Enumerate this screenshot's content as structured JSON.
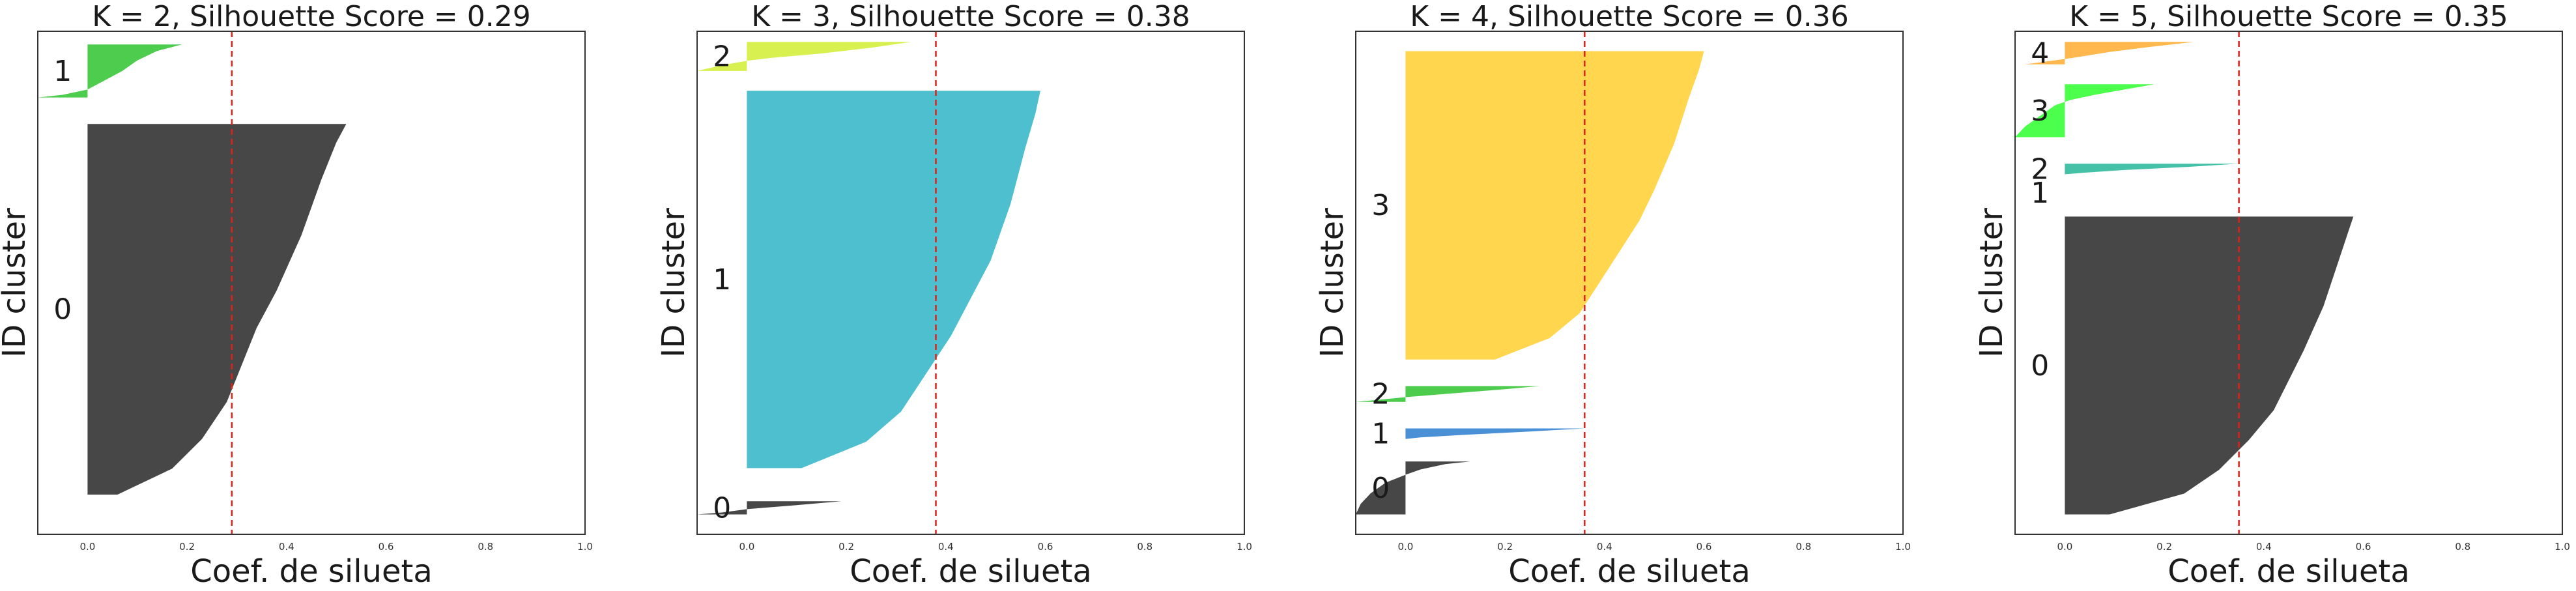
{
  "chart_data": [
    {
      "type": "silhouette",
      "title": "K = 2, Silhouette Score = 0.29",
      "xlabel": "Coef. de silueta",
      "ylabel": "ID cluster",
      "xlim": [
        -0.1,
        1.0
      ],
      "xticks": [
        "0.0",
        "0.2",
        "0.4",
        "0.6",
        "0.8",
        "1.0"
      ],
      "xtick_values": [
        0.0,
        0.2,
        0.4,
        0.6,
        0.8,
        1.0
      ],
      "avg_score": 0.29,
      "avg_line_color": "#e0201b",
      "y_total": 380,
      "clusters": [
        {
          "label": "0",
          "color": "#474747",
          "y0": 30,
          "y1": 310,
          "profile": [
            [
              0.0,
              0.52
            ],
            [
              0.05,
              0.5
            ],
            [
              0.15,
              0.47
            ],
            [
              0.3,
              0.43
            ],
            [
              0.45,
              0.38
            ],
            [
              0.55,
              0.34
            ],
            [
              0.65,
              0.31
            ],
            [
              0.75,
              0.28
            ],
            [
              0.85,
              0.23
            ],
            [
              0.93,
              0.17
            ],
            [
              1.0,
              0.06
            ]
          ]
        },
        {
          "label": "1",
          "color": "#4dcc4d",
          "y0": 330,
          "y1": 370,
          "profile": [
            [
              0.0,
              0.19
            ],
            [
              0.12,
              0.14
            ],
            [
              0.3,
              0.1
            ],
            [
              0.5,
              0.07
            ],
            [
              0.7,
              0.03
            ],
            [
              0.85,
              0.0
            ],
            [
              0.95,
              -0.05
            ],
            [
              1.0,
              -0.1
            ]
          ]
        }
      ]
    },
    {
      "type": "silhouette",
      "title": "K = 3, Silhouette Score = 0.38",
      "xlabel": "Coef. de silueta",
      "ylabel": "ID cluster",
      "xlim": [
        -0.1,
        1.0
      ],
      "xticks": [
        "0.0",
        "0.2",
        "0.4",
        "0.6",
        "0.8",
        "1.0"
      ],
      "xtick_values": [
        0.0,
        0.2,
        0.4,
        0.6,
        0.8,
        1.0
      ],
      "avg_score": 0.38,
      "avg_line_color": "#e0201b",
      "y_total": 380,
      "clusters": [
        {
          "label": "0",
          "color": "#474747",
          "y0": 15,
          "y1": 25,
          "profile": [
            [
              0.0,
              0.19
            ],
            [
              0.3,
              0.1
            ],
            [
              0.6,
              0.0
            ],
            [
              0.85,
              -0.05
            ],
            [
              1.0,
              -0.1
            ]
          ]
        },
        {
          "label": "1",
          "color": "#4ebfce",
          "y0": 50,
          "y1": 335,
          "profile": [
            [
              0.0,
              0.59
            ],
            [
              0.06,
              0.58
            ],
            [
              0.15,
              0.56
            ],
            [
              0.3,
              0.53
            ],
            [
              0.45,
              0.49
            ],
            [
              0.55,
              0.45
            ],
            [
              0.65,
              0.41
            ],
            [
              0.75,
              0.36
            ],
            [
              0.85,
              0.31
            ],
            [
              0.93,
              0.24
            ],
            [
              1.0,
              0.11
            ]
          ]
        },
        {
          "label": "2",
          "color": "#d8f050",
          "y0": 350,
          "y1": 372,
          "profile": [
            [
              0.0,
              0.33
            ],
            [
              0.2,
              0.25
            ],
            [
              0.4,
              0.15
            ],
            [
              0.55,
              0.05
            ],
            [
              0.65,
              0.0
            ],
            [
              0.8,
              -0.05
            ],
            [
              1.0,
              -0.1
            ]
          ]
        }
      ]
    },
    {
      "type": "silhouette",
      "title": "K = 4, Silhouette Score = 0.36",
      "xlabel": "Coef. de silueta",
      "ylabel": "ID cluster",
      "xlim": [
        -0.1,
        1.0
      ],
      "xticks": [
        "0.0",
        "0.2",
        "0.4",
        "0.6",
        "0.8",
        "1.0"
      ],
      "xtick_values": [
        0.0,
        0.2,
        0.4,
        0.6,
        0.8,
        1.0
      ],
      "avg_score": 0.36,
      "avg_line_color": "#e0201b",
      "y_total": 380,
      "clusters": [
        {
          "label": "0",
          "color": "#474747",
          "y0": 15,
          "y1": 55,
          "profile": [
            [
              0.0,
              0.13
            ],
            [
              0.05,
              0.08
            ],
            [
              0.15,
              0.03
            ],
            [
              0.25,
              0.0
            ],
            [
              0.4,
              -0.04
            ],
            [
              0.6,
              -0.07
            ],
            [
              0.8,
              -0.09
            ],
            [
              1.0,
              -0.1
            ]
          ]
        },
        {
          "label": "1",
          "color": "#4a90d6",
          "y0": 72,
          "y1": 80,
          "profile": [
            [
              0.0,
              0.36
            ],
            [
              0.3,
              0.25
            ],
            [
              0.6,
              0.12
            ],
            [
              0.85,
              0.03
            ],
            [
              1.0,
              0.0
            ]
          ]
        },
        {
          "label": "2",
          "color": "#4dcc4d",
          "y0": 100,
          "y1": 112,
          "profile": [
            [
              0.0,
              0.27
            ],
            [
              0.2,
              0.2
            ],
            [
              0.45,
              0.1
            ],
            [
              0.7,
              0.0
            ],
            [
              0.85,
              -0.05
            ],
            [
              1.0,
              -0.1
            ]
          ]
        },
        {
          "label": "3",
          "color": "#ffd64d",
          "y0": 132,
          "y1": 365,
          "profile": [
            [
              0.0,
              0.6
            ],
            [
              0.06,
              0.59
            ],
            [
              0.15,
              0.57
            ],
            [
              0.3,
              0.54
            ],
            [
              0.45,
              0.5
            ],
            [
              0.55,
              0.47
            ],
            [
              0.65,
              0.43
            ],
            [
              0.75,
              0.39
            ],
            [
              0.85,
              0.35
            ],
            [
              0.93,
              0.29
            ],
            [
              1.0,
              0.18
            ]
          ]
        }
      ]
    },
    {
      "type": "silhouette",
      "title": "K = 5, Silhouette Score = 0.35",
      "xlabel": "Coef. de silueta",
      "ylabel": "ID cluster",
      "xlim": [
        -0.1,
        1.0
      ],
      "xticks": [
        "0.0",
        "0.2",
        "0.4",
        "0.6",
        "0.8",
        "1.0"
      ],
      "xtick_values": [
        0.0,
        0.2,
        0.4,
        0.6,
        0.8,
        1.0
      ],
      "avg_score": 0.35,
      "avg_line_color": "#e0201b",
      "y_total": 380,
      "clusters": [
        {
          "label": "0",
          "color": "#474747",
          "y0": 15,
          "y1": 240,
          "profile": [
            [
              0.0,
              0.58
            ],
            [
              0.05,
              0.57
            ],
            [
              0.15,
              0.55
            ],
            [
              0.3,
              0.52
            ],
            [
              0.45,
              0.48
            ],
            [
              0.55,
              0.45
            ],
            [
              0.65,
              0.42
            ],
            [
              0.75,
              0.37
            ],
            [
              0.85,
              0.31
            ],
            [
              0.93,
              0.24
            ],
            [
              1.0,
              0.09
            ]
          ]
        },
        {
          "label": "1",
          "color": "#474747",
          "y0": 258,
          "y1": 258,
          "profile": [
            [
              0.0,
              0.0
            ],
            [
              1.0,
              0.0
            ]
          ]
        },
        {
          "label": "2",
          "color": "#45c1a8",
          "y0": 272,
          "y1": 280,
          "profile": [
            [
              0.0,
              0.35
            ],
            [
              0.3,
              0.25
            ],
            [
              0.6,
              0.12
            ],
            [
              0.85,
              0.04
            ],
            [
              1.0,
              0.0
            ]
          ]
        },
        {
          "label": "3",
          "color": "#4dff4d",
          "y0": 300,
          "y1": 340,
          "profile": [
            [
              0.0,
              0.18
            ],
            [
              0.1,
              0.12
            ],
            [
              0.2,
              0.06
            ],
            [
              0.3,
              0.01
            ],
            [
              0.4,
              -0.02
            ],
            [
              0.6,
              -0.05
            ],
            [
              0.8,
              -0.08
            ],
            [
              1.0,
              -0.1
            ]
          ]
        },
        {
          "label": "4",
          "color": "#ffb84d",
          "y0": 355,
          "y1": 372,
          "profile": [
            [
              0.0,
              0.26
            ],
            [
              0.2,
              0.18
            ],
            [
              0.45,
              0.09
            ],
            [
              0.7,
              0.02
            ],
            [
              0.85,
              -0.03
            ],
            [
              1.0,
              -0.08
            ]
          ]
        }
      ]
    }
  ]
}
